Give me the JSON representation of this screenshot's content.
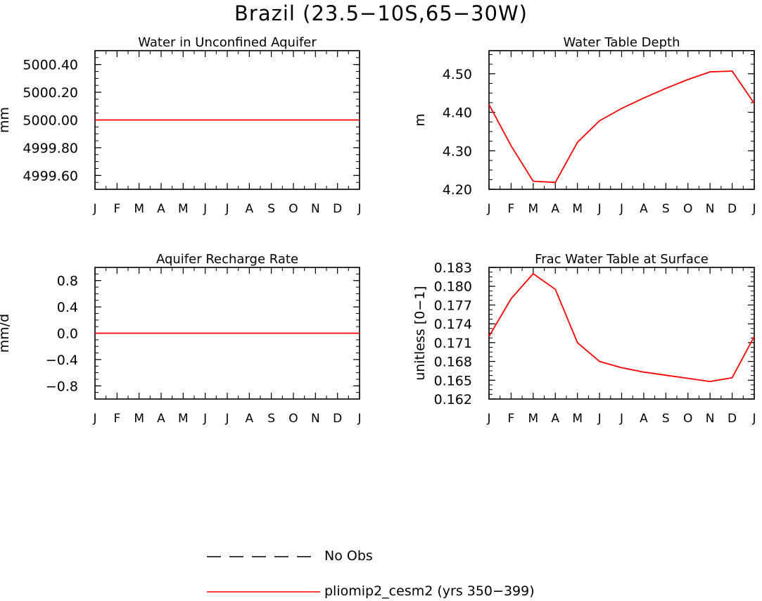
{
  "title": "Brazil (23.5−10S,65−30W)",
  "legend": [
    {
      "label": "No Obs",
      "style": "dashed",
      "color": "#000000"
    },
    {
      "label": "pliomip2_cesm2 (yrs 350−399)",
      "style": "solid",
      "color": "#ff0000"
    }
  ],
  "chart_data": [
    {
      "type": "line",
      "title": "Water in Unconfined Aquifer",
      "ylabel": "mm",
      "xticks": [
        "J",
        "F",
        "M",
        "A",
        "M",
        "J",
        "J",
        "A",
        "S",
        "O",
        "N",
        "D",
        "J"
      ],
      "ylim": [
        4999.5,
        5000.5
      ],
      "yticks": [
        4999.6,
        4999.8,
        5000.0,
        5000.2,
        5000.4
      ],
      "ytick_labels": [
        "4999.60",
        "4999.80",
        "5000.00",
        "5000.20",
        "5000.40"
      ],
      "series": [
        {
          "color": "#ff0000",
          "values": [
            5000.0,
            5000.0,
            5000.0,
            5000.0,
            5000.0,
            5000.0,
            5000.0,
            5000.0,
            5000.0,
            5000.0,
            5000.0,
            5000.0,
            5000.0
          ]
        }
      ]
    },
    {
      "type": "line",
      "title": "Water Table Depth",
      "ylabel": "m",
      "xticks": [
        "J",
        "F",
        "M",
        "A",
        "M",
        "J",
        "J",
        "A",
        "S",
        "O",
        "N",
        "D",
        "J"
      ],
      "ylim": [
        4.2,
        4.56
      ],
      "yticks": [
        4.2,
        4.3,
        4.4,
        4.5
      ],
      "ytick_labels": [
        "4.20",
        "4.30",
        "4.40",
        "4.50"
      ],
      "series": [
        {
          "color": "#ff0000",
          "values": [
            4.42,
            4.313,
            4.221,
            4.218,
            4.322,
            4.378,
            4.41,
            4.437,
            4.462,
            4.485,
            4.505,
            4.507,
            4.423
          ]
        }
      ]
    },
    {
      "type": "line",
      "title": "Aquifer Recharge Rate",
      "ylabel": "mm/d",
      "xticks": [
        "J",
        "F",
        "M",
        "A",
        "M",
        "J",
        "J",
        "A",
        "S",
        "O",
        "N",
        "D",
        "J"
      ],
      "ylim": [
        -1.0,
        1.0
      ],
      "yticks": [
        -0.8,
        -0.4,
        0.0,
        0.4,
        0.8
      ],
      "ytick_labels": [
        "−0.8",
        "−0.4",
        "0.0",
        "0.4",
        "0.8"
      ],
      "series": [
        {
          "color": "#ff0000",
          "values": [
            0,
            0,
            0,
            0,
            0,
            0,
            0,
            0,
            0,
            0,
            0,
            0,
            0
          ]
        }
      ]
    },
    {
      "type": "line",
      "title": "Frac Water Table at Surface",
      "ylabel": "unitless [0−1]",
      "xticks": [
        "J",
        "F",
        "M",
        "A",
        "M",
        "J",
        "J",
        "A",
        "S",
        "O",
        "N",
        "D",
        "J"
      ],
      "ylim": [
        0.162,
        0.183
      ],
      "yticks": [
        0.162,
        0.165,
        0.168,
        0.171,
        0.174,
        0.177,
        0.18,
        0.183
      ],
      "ytick_labels": [
        "0.162",
        "0.165",
        "0.168",
        "0.171",
        "0.174",
        "0.177",
        "0.180",
        "0.183"
      ],
      "series": [
        {
          "color": "#ff0000",
          "values": [
            0.172,
            0.178,
            0.182,
            0.1795,
            0.171,
            0.168,
            0.167,
            0.1663,
            0.1658,
            0.1653,
            0.1648,
            0.1654,
            0.172
          ]
        }
      ]
    }
  ]
}
